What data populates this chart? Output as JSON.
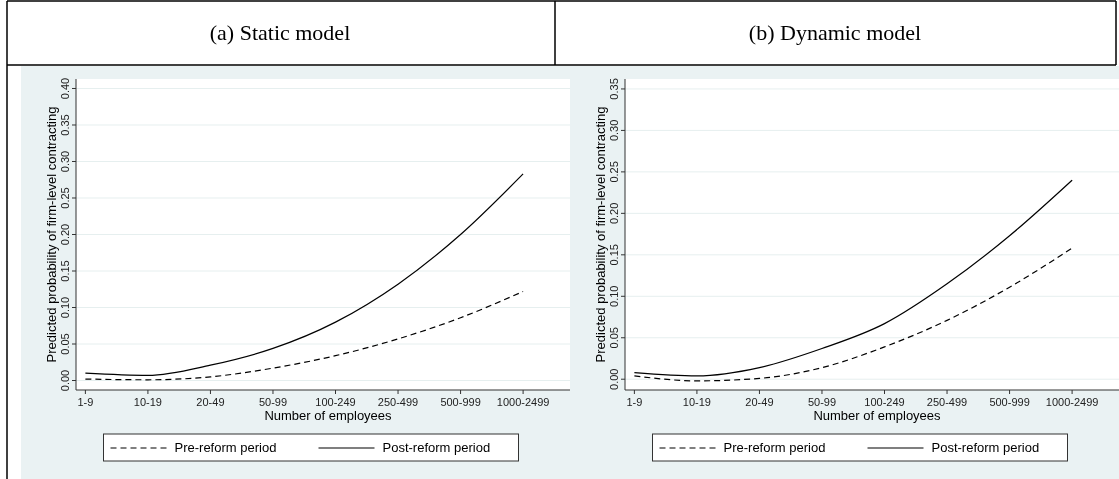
{
  "chart_data": [
    {
      "type": "line",
      "title": "(a) Static model",
      "xlabel": "Number of employees",
      "ylabel": "Predicted probability of firm-level contracting",
      "categories": [
        "1-9",
        "10-19",
        "20-49",
        "50-99",
        "100-249",
        "250-499",
        "500-999",
        "1000-2499"
      ],
      "series": [
        {
          "name": "Pre-reform period",
          "color": "#000000",
          "line_style": "dashed",
          "values": [
            0.002,
            0.001,
            0.005,
            0.017,
            0.034,
            0.057,
            0.086,
            0.122
          ]
        },
        {
          "name": "Post-reform period",
          "color": "#000000",
          "line_style": "solid",
          "values": [
            0.01,
            0.007,
            0.021,
            0.044,
            0.08,
            0.132,
            0.2,
            0.283
          ]
        }
      ],
      "ylim": [
        -0.013,
        0.413
      ],
      "yticks": [
        {
          "value": 0,
          "label": "0.00"
        },
        {
          "value": 0.05,
          "label": "0.05"
        },
        {
          "value": 0.1,
          "label": "0.10"
        },
        {
          "value": 0.15,
          "label": "0.15"
        },
        {
          "value": 0.2,
          "label": "0.20"
        },
        {
          "value": 0.25,
          "label": "0.25"
        },
        {
          "value": 0.3,
          "label": "0.30"
        },
        {
          "value": 0.35,
          "label": "0.35"
        },
        {
          "value": 0.4,
          "label": "0.40"
        }
      ],
      "grid": "y",
      "legend": "bottom"
    },
    {
      "type": "line",
      "title": "(b) Dynamic model",
      "xlabel": "Number of employees",
      "ylabel": "Predicted probability of firm-level contracting",
      "categories": [
        "1-9",
        "10-19",
        "20-49",
        "50-99",
        "100-249",
        "250-499",
        "500-999",
        "1000-2499"
      ],
      "series": [
        {
          "name": "Pre-reform period",
          "color": "#000000",
          "line_style": "dashed",
          "values": [
            0.004,
            -0.002,
            0.001,
            0.014,
            0.039,
            0.071,
            0.111,
            0.158
          ]
        },
        {
          "name": "Post-reform period",
          "color": "#000000",
          "line_style": "solid",
          "values": [
            0.008,
            0.004,
            0.014,
            0.037,
            0.067,
            0.115,
            0.173,
            0.24
          ]
        }
      ],
      "ylim": [
        -0.013,
        0.362
      ],
      "yticks": [
        {
          "value": 0,
          "label": "0.00"
        },
        {
          "value": 0.05,
          "label": "0.05"
        },
        {
          "value": 0.1,
          "label": "0.10"
        },
        {
          "value": 0.15,
          "label": "0.15"
        },
        {
          "value": 0.2,
          "label": "0.20"
        },
        {
          "value": 0.25,
          "label": "0.25"
        },
        {
          "value": 0.3,
          "label": "0.30"
        },
        {
          "value": 0.35,
          "label": "0.35"
        }
      ],
      "grid": "y",
      "legend": "bottom"
    }
  ]
}
